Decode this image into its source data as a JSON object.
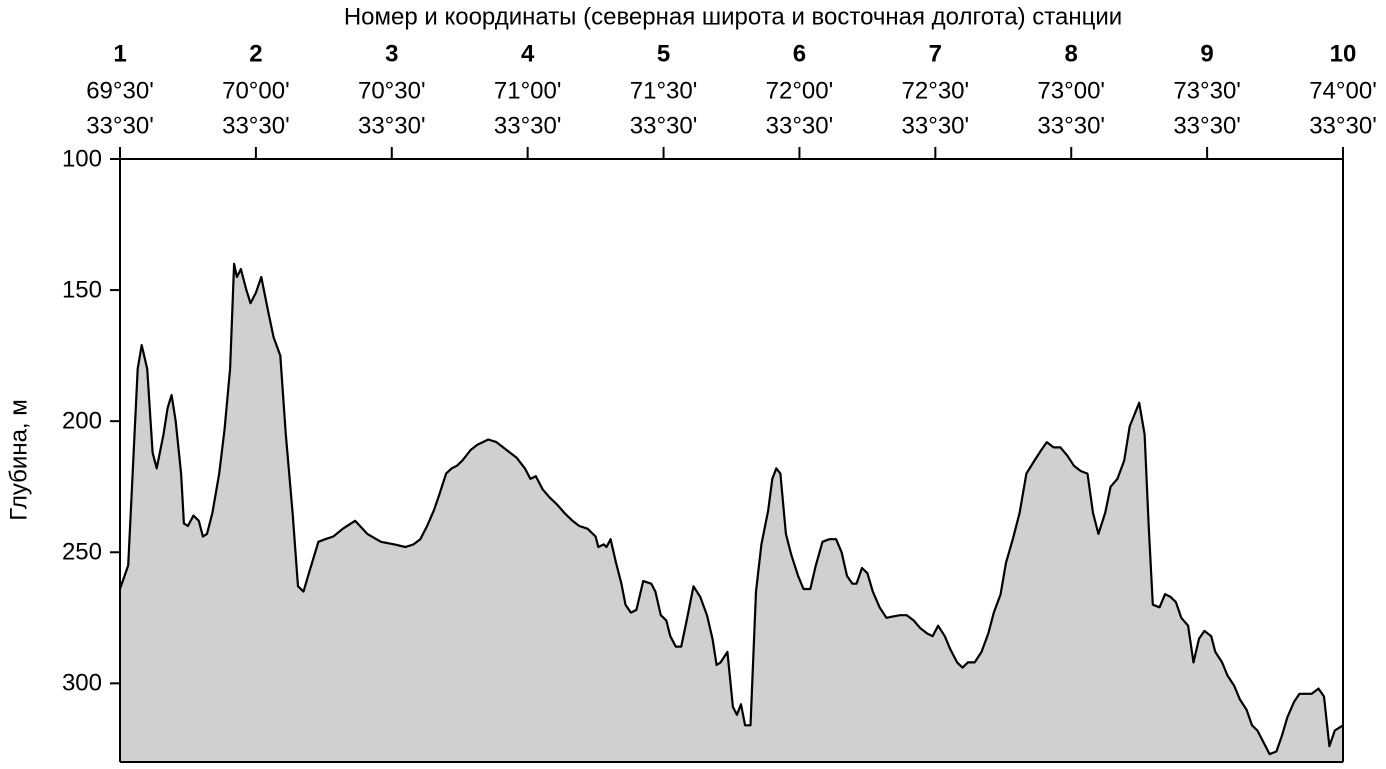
{
  "chart_data": {
    "type": "area",
    "title": "Номер и координаты (северная широта и восточная долгота) станции",
    "y_label": "Глубина, м",
    "xlim": [
      1,
      10
    ],
    "xticks": [
      1,
      2,
      3,
      4,
      5,
      6,
      7,
      8,
      9,
      10
    ],
    "station_lat": [
      "69°30'",
      "70°00'",
      "70°30'",
      "71°00'",
      "71°30'",
      "72°00'",
      "72°30'",
      "73°00'",
      "73°30'",
      "74°00'"
    ],
    "station_lon": [
      "33°30'",
      "33°30'",
      "33°30'",
      "33°30'",
      "33°30'",
      "33°30'",
      "33°30'",
      "33°30'",
      "33°30'",
      "33°30'"
    ],
    "ylim": [
      100,
      330
    ],
    "y_inverted": true,
    "yticks": [
      100,
      150,
      200,
      250,
      300
    ],
    "color": "#d0d0d0",
    "line_color": "#000000",
    "x": [
      1.0,
      1.06,
      1.13,
      1.16,
      1.2,
      1.24,
      1.27,
      1.32,
      1.35,
      1.38,
      1.41,
      1.45,
      1.47,
      1.5,
      1.54,
      1.58,
      1.61,
      1.64,
      1.68,
      1.73,
      1.77,
      1.81,
      1.84,
      1.86,
      1.89,
      1.93,
      1.96,
      2.0,
      2.04,
      2.09,
      2.13,
      2.18,
      2.22,
      2.27,
      2.31,
      2.35,
      2.39,
      2.46,
      2.51,
      2.57,
      2.64,
      2.73,
      2.82,
      2.92,
      3.02,
      3.1,
      3.16,
      3.21,
      3.26,
      3.31,
      3.35,
      3.4,
      3.44,
      3.48,
      3.52,
      3.58,
      3.63,
      3.71,
      3.77,
      3.82,
      3.87,
      3.92,
      3.98,
      4.02,
      4.06,
      4.11,
      4.16,
      4.22,
      4.27,
      4.33,
      4.38,
      4.44,
      4.5,
      4.52,
      4.56,
      4.58,
      4.61,
      4.65,
      4.69,
      4.72,
      4.76,
      4.8,
      4.85,
      4.91,
      4.94,
      4.98,
      5.02,
      5.05,
      5.09,
      5.13,
      5.17,
      5.22,
      5.27,
      5.32,
      5.36,
      5.39,
      5.42,
      5.47,
      5.51,
      5.54,
      5.57,
      5.6,
      5.64,
      5.68,
      5.72,
      5.77,
      5.8,
      5.83,
      5.86,
      5.9,
      5.94,
      5.99,
      6.03,
      6.08,
      6.12,
      6.17,
      6.22,
      6.27,
      6.31,
      6.35,
      6.39,
      6.42,
      6.46,
      6.5,
      6.54,
      6.59,
      6.64,
      6.74,
      6.79,
      6.84,
      6.89,
      6.94,
      6.98,
      7.02,
      7.07,
      7.11,
      7.16,
      7.2,
      7.24,
      7.29,
      7.34,
      7.39,
      7.43,
      7.48,
      7.52,
      7.57,
      7.62,
      7.67,
      7.73,
      7.78,
      7.82,
      7.87,
      7.92,
      7.97,
      8.02,
      8.07,
      8.12,
      8.16,
      8.2,
      8.25,
      8.29,
      8.34,
      8.39,
      8.43,
      8.5,
      8.54,
      8.57,
      8.6,
      8.65,
      8.69,
      8.73,
      8.77,
      8.81,
      8.86,
      8.9,
      8.94,
      8.98,
      9.03,
      9.06,
      9.11,
      9.15,
      9.2,
      9.24,
      9.29,
      9.33,
      9.37,
      9.42,
      9.46,
      9.51,
      9.55,
      9.59,
      9.64,
      9.68,
      9.77,
      9.82,
      9.86,
      9.9,
      9.94,
      10.0
    ],
    "values": [
      264,
      255,
      180,
      171,
      180,
      212,
      218,
      205,
      195,
      190,
      200,
      220,
      239,
      240,
      236,
      238,
      244,
      243,
      235,
      220,
      203,
      180,
      140,
      145,
      142,
      150,
      155,
      151,
      145,
      158,
      168,
      175,
      205,
      235,
      263,
      265,
      258,
      246,
      245,
      244,
      241,
      238,
      243,
      246,
      247,
      248,
      247,
      245,
      240,
      234,
      228,
      220,
      218,
      217,
      215,
      211,
      209,
      207,
      208,
      210,
      212,
      214,
      218,
      222,
      221,
      226,
      229,
      232,
      235,
      238,
      240,
      241,
      244,
      248,
      247,
      248,
      245,
      254,
      262,
      270,
      273,
      272,
      261,
      262,
      265,
      274,
      276,
      282,
      286,
      286,
      276,
      263,
      267,
      274,
      283,
      293,
      292,
      288,
      309,
      312,
      308,
      316,
      316,
      265,
      247,
      234,
      222,
      218,
      220,
      243,
      251,
      259,
      264,
      264,
      255,
      246,
      245,
      245,
      250,
      259,
      262,
      262,
      256,
      258,
      265,
      271,
      275,
      274,
      274,
      276,
      279,
      281,
      282,
      278,
      282,
      287,
      292,
      294,
      292,
      292,
      288,
      281,
      273,
      266,
      254,
      245,
      235,
      220,
      215,
      211,
      208,
      210,
      210,
      213,
      217,
      219,
      220,
      235,
      243,
      235,
      225,
      222,
      215,
      202,
      193,
      205,
      240,
      270,
      271,
      266,
      267,
      269,
      275,
      278,
      292,
      283,
      280,
      282,
      288,
      292,
      297,
      301,
      306,
      310,
      316,
      318,
      323,
      327,
      326,
      320,
      313,
      307,
      304,
      304,
      302,
      305,
      324,
      318,
      316
    ]
  }
}
